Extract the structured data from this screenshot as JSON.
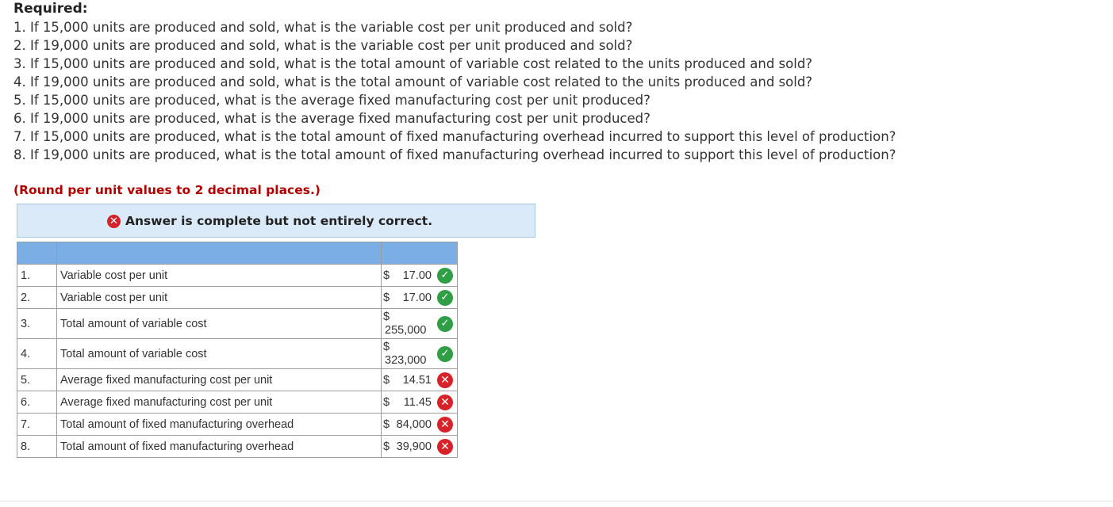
{
  "heading": "Required:",
  "questions": [
    "1. If 15,000 units are produced and sold, what is the variable cost per unit produced and sold?",
    "2. If 19,000 units are produced and sold, what is the variable cost per unit produced and sold?",
    "3. If 15,000 units are produced and sold, what is the total amount of variable cost related to the units produced and sold?",
    "4. If 19,000 units are produced and sold, what is the total amount of variable cost related to the units produced and sold?",
    "5. If 15,000 units are produced, what is the average fixed manufacturing cost per unit produced?",
    "6. If 19,000 units are produced, what is the average fixed manufacturing cost per unit produced?",
    "7. If 15,000 units are produced, what is the total amount of fixed manufacturing overhead incurred to support this level of production?",
    "8. If 19,000 units are produced, what is the total amount of fixed manufacturing overhead incurred to support this level of production?"
  ],
  "instruction": "(Round per unit values to 2 decimal places.)",
  "status": {
    "icon": "x-circle-icon",
    "text": "Answer is complete but not entirely correct."
  },
  "table": {
    "rows": [
      {
        "num": "1.",
        "label": "Variable cost per unit",
        "currency": "$",
        "value": "17.00",
        "result": "correct"
      },
      {
        "num": "2.",
        "label": "Variable cost per unit",
        "currency": "$",
        "value": "17.00",
        "result": "correct"
      },
      {
        "num": "3.",
        "label": "Total amount of variable cost",
        "currency": "$",
        "value": "255,000",
        "result": "correct"
      },
      {
        "num": "4.",
        "label": "Total amount of variable cost",
        "currency": "$",
        "value": "323,000",
        "result": "correct"
      },
      {
        "num": "5.",
        "label": "Average fixed manufacturing cost per unit",
        "currency": "$",
        "value": "14.51",
        "result": "incorrect"
      },
      {
        "num": "6.",
        "label": "Average fixed manufacturing cost per unit",
        "currency": "$",
        "value": "11.45",
        "result": "incorrect"
      },
      {
        "num": "7.",
        "label": "Total amount of fixed manufacturing overhead",
        "currency": "$",
        "value": "84,000",
        "result": "incorrect"
      },
      {
        "num": "8.",
        "label": "Total amount of fixed manufacturing overhead",
        "currency": "$",
        "value": "39,900",
        "result": "incorrect"
      }
    ]
  },
  "colors": {
    "header": "#7caee6",
    "status_bg": "#dbeaf8",
    "correct": "#2f9e44",
    "incorrect": "#d7222a",
    "instruction": "#b20000"
  }
}
